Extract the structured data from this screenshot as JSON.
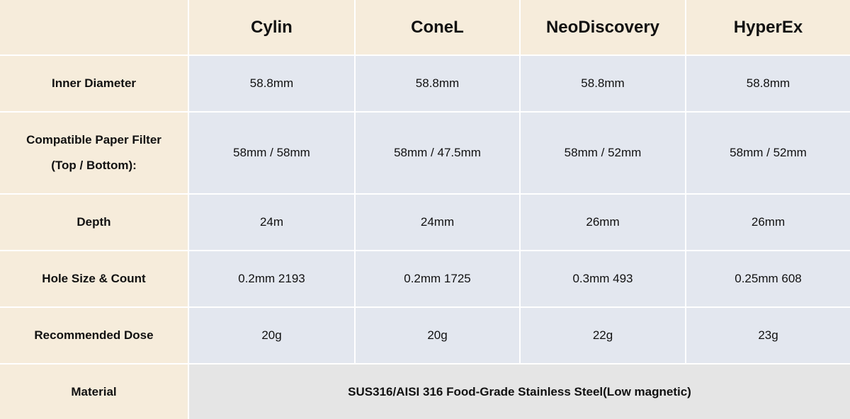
{
  "columns": [
    "Cylin",
    "ConeL",
    "NeoDiscovery",
    "HyperEx"
  ],
  "rows": [
    {
      "label": "Inner Diameter",
      "values": [
        "58.8mm",
        "58.8mm",
        "58.8mm",
        "58.8mm"
      ]
    },
    {
      "label": "Compatible Paper Filter",
      "label2": "(Top / Bottom):",
      "values": [
        "58mm / 58mm",
        "58mm / 47.5mm",
        "58mm / 52mm",
        "58mm / 52mm"
      ]
    },
    {
      "label": "Depth",
      "values": [
        "24m",
        "24mm",
        "26mm",
        "26mm"
      ]
    },
    {
      "label": "Hole Size & Count",
      "values": [
        "0.2mm 2193",
        "0.2mm 1725",
        "0.3mm 493",
        "0.25mm 608"
      ]
    },
    {
      "label": "Recommended Dose",
      "values": [
        "20g",
        "20g",
        "22g",
        "23g"
      ]
    }
  ],
  "material": {
    "label": "Material",
    "value": "SUS316/AISI 316 Food-Grade Stainless Steel(Low magnetic)"
  },
  "colors": {
    "header": "#f6ecdb",
    "cell": "#e3e7ef",
    "material_cell": "#e5e5e5"
  }
}
